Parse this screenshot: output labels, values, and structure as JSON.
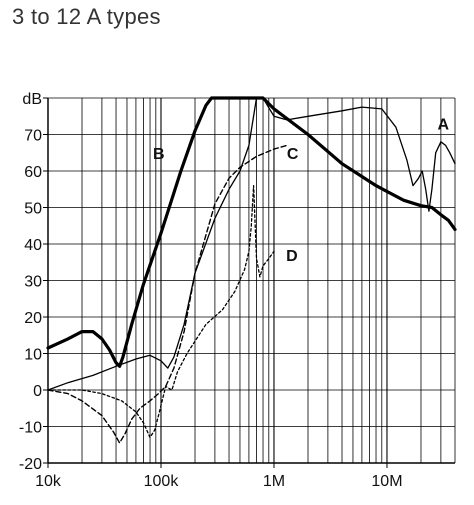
{
  "chart_data": {
    "type": "line",
    "title": "3 to 12 A types",
    "xlabel": "",
    "ylabel": "dB",
    "x_scale": "log",
    "xlim": [
      10000,
      40000000
    ],
    "ylim": [
      -20,
      80
    ],
    "grid": true,
    "x_ticks": [
      {
        "value": 10000,
        "label": "10k"
      },
      {
        "value": 100000,
        "label": "100k"
      },
      {
        "value": 1000000,
        "label": "1M"
      },
      {
        "value": 10000000,
        "label": "10M"
      }
    ],
    "y_ticks": [
      {
        "value": 80,
        "label": "dB"
      },
      {
        "value": 70,
        "label": "70"
      },
      {
        "value": 60,
        "label": "60"
      },
      {
        "value": 50,
        "label": "50"
      },
      {
        "value": 40,
        "label": "40"
      },
      {
        "value": 30,
        "label": "30"
      },
      {
        "value": 20,
        "label": "20"
      },
      {
        "value": 10,
        "label": "10"
      },
      {
        "value": 0,
        "label": "0"
      },
      {
        "value": -10,
        "label": "-10"
      },
      {
        "value": -20,
        "label": "-20"
      }
    ],
    "series": [
      {
        "name": "A",
        "style": "thin",
        "label_at": [
          28000000,
          73
        ],
        "points": [
          [
            10000,
            0
          ],
          [
            15000,
            2
          ],
          [
            25000,
            4
          ],
          [
            40000,
            6.5
          ],
          [
            60000,
            8.5
          ],
          [
            80000,
            9.5
          ],
          [
            100000,
            8
          ],
          [
            115000,
            6
          ],
          [
            130000,
            9
          ],
          [
            160000,
            18
          ],
          [
            200000,
            32
          ],
          [
            300000,
            47
          ],
          [
            400000,
            55
          ],
          [
            500000,
            60
          ],
          [
            600000,
            67
          ],
          [
            700000,
            80
          ],
          [
            800000,
            80
          ],
          [
            1000000,
            75
          ],
          [
            1300000,
            74
          ],
          [
            2000000,
            75
          ],
          [
            4000000,
            76.5
          ],
          [
            6000000,
            77.5
          ],
          [
            9000000,
            77
          ],
          [
            12000000,
            72
          ],
          [
            15000000,
            63
          ],
          [
            17000000,
            56
          ],
          [
            19000000,
            58
          ],
          [
            20500000,
            60
          ],
          [
            22000000,
            55
          ],
          [
            23500000,
            49
          ],
          [
            25000000,
            55
          ],
          [
            27000000,
            65
          ],
          [
            30000000,
            68
          ],
          [
            33000000,
            67
          ],
          [
            36000000,
            65
          ],
          [
            40000000,
            62
          ]
        ]
      },
      {
        "name": "B",
        "style": "thick",
        "label_at": [
          85000,
          65
        ],
        "points": [
          [
            10000,
            11.5
          ],
          [
            15000,
            14
          ],
          [
            20000,
            16
          ],
          [
            25000,
            16
          ],
          [
            30000,
            14
          ],
          [
            35000,
            11
          ],
          [
            40000,
            7.5
          ],
          [
            43000,
            6.5
          ],
          [
            46000,
            9
          ],
          [
            55000,
            18
          ],
          [
            70000,
            29
          ],
          [
            100000,
            43
          ],
          [
            150000,
            60
          ],
          [
            200000,
            71
          ],
          [
            250000,
            78
          ],
          [
            280000,
            80
          ],
          [
            700000,
            80
          ],
          [
            800000,
            80
          ],
          [
            1000000,
            77
          ],
          [
            2000000,
            70
          ],
          [
            4000000,
            62
          ],
          [
            8000000,
            56
          ],
          [
            14000000,
            52
          ],
          [
            20000000,
            50.5
          ],
          [
            25000000,
            50
          ],
          [
            30000000,
            48
          ],
          [
            35000000,
            46.5
          ],
          [
            40000000,
            44
          ]
        ]
      },
      {
        "name": "C",
        "style": "dashed",
        "label_at": [
          1300000,
          65
        ],
        "points": [
          [
            10000,
            0
          ],
          [
            15000,
            -1
          ],
          [
            20000,
            -3
          ],
          [
            30000,
            -7
          ],
          [
            38000,
            -11.5
          ],
          [
            43000,
            -14.5
          ],
          [
            48000,
            -12
          ],
          [
            55000,
            -8
          ],
          [
            65000,
            -5
          ],
          [
            80000,
            -3
          ],
          [
            95000,
            -1
          ],
          [
            110000,
            1
          ],
          [
            130000,
            6
          ],
          [
            160000,
            16
          ],
          [
            200000,
            32
          ],
          [
            300000,
            51
          ],
          [
            400000,
            58
          ],
          [
            500000,
            61
          ],
          [
            700000,
            64
          ],
          [
            1000000,
            66
          ],
          [
            1300000,
            67
          ]
        ]
      },
      {
        "name": "D",
        "style": "dotted",
        "label_at": [
          1280000,
          37
        ],
        "points": [
          [
            10000,
            0
          ],
          [
            20000,
            0
          ],
          [
            30000,
            -1
          ],
          [
            45000,
            -3
          ],
          [
            60000,
            -6
          ],
          [
            70000,
            -9
          ],
          [
            80000,
            -13
          ],
          [
            88000,
            -11
          ],
          [
            95000,
            -7
          ],
          [
            110000,
            1
          ],
          [
            125000,
            0
          ],
          [
            140000,
            5
          ],
          [
            170000,
            10
          ],
          [
            250000,
            18
          ],
          [
            350000,
            22
          ],
          [
            450000,
            27
          ],
          [
            550000,
            33
          ],
          [
            600000,
            38
          ],
          [
            630000,
            45
          ],
          [
            660000,
            56
          ],
          [
            700000,
            36
          ],
          [
            750000,
            31
          ],
          [
            800000,
            34
          ],
          [
            900000,
            36
          ],
          [
            1000000,
            38
          ]
        ]
      }
    ]
  }
}
